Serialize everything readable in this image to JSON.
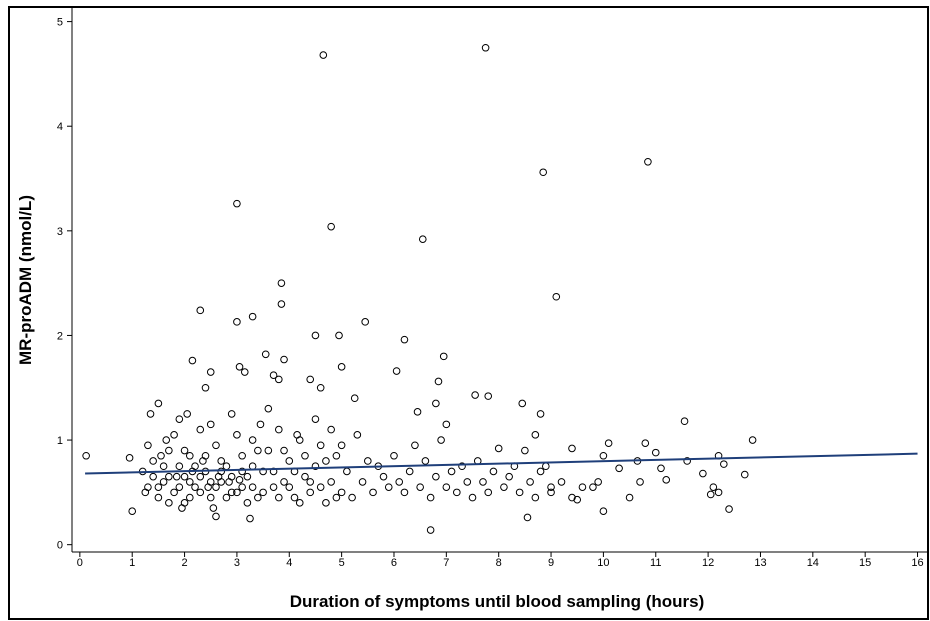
{
  "chart_data": {
    "type": "scatter",
    "x_label": "Duration of symptoms until blood sampling (hours)",
    "y_label": "MR-proADM (nmol/L)",
    "xlim": [
      -0.15,
      16.2
    ],
    "ylim": [
      -0.07,
      5.13
    ],
    "xticks": [
      0,
      1,
      2,
      3,
      4,
      5,
      6,
      7,
      8,
      9,
      10,
      11,
      12,
      13,
      14,
      15,
      16
    ],
    "yticks": [
      0,
      1,
      2,
      3,
      4,
      5
    ],
    "series": [
      {
        "type": "scatter",
        "color": "#000000",
        "x": [
          4.65,
          7.75,
          10.85,
          8.85,
          3.0,
          4.8,
          6.55,
          9.1,
          3.85,
          3.85,
          2.3,
          3.3,
          3.0,
          5.45,
          4.95,
          4.5,
          6.2,
          2.15,
          3.55,
          3.9,
          6.95,
          3.05,
          2.5,
          3.15,
          5.0,
          6.05,
          3.7,
          4.4,
          6.85,
          3.8,
          4.6,
          2.4,
          7.55,
          7.8,
          5.25,
          8.45,
          6.8,
          6.45,
          8.8,
          11.55,
          7.0,
          8.7,
          12.85,
          10.1,
          10.8,
          9.4,
          0.12,
          0.95,
          1.0,
          6.7,
          12.4,
          12.2,
          11.6,
          12.7,
          10.0,
          8.55,
          2.6,
          3.25,
          11.0,
          12.2,
          12.3,
          10.7,
          10.5,
          9.9,
          9.5,
          9.0,
          11.9,
          12.1,
          12.05,
          11.1,
          11.2,
          10.65,
          10.3,
          1.2,
          1.3,
          1.4,
          1.5,
          1.5,
          1.6,
          1.7,
          1.8,
          1.9,
          2.0,
          2.0,
          2.1,
          2.2,
          2.3,
          2.4,
          2.5,
          2.6,
          2.7,
          2.8,
          2.9,
          3.0,
          3.1,
          3.2,
          3.3,
          3.4,
          3.5,
          3.6,
          3.7,
          3.8,
          3.9,
          4.0,
          4.1,
          4.2,
          4.3,
          4.4,
          4.5,
          4.6,
          4.7,
          4.8,
          4.9,
          5.0,
          5.1,
          5.2,
          5.3,
          5.4,
          5.5,
          5.6,
          5.7,
          5.8,
          5.9,
          6.0,
          6.1,
          6.2,
          6.3,
          6.4,
          6.5,
          6.6,
          6.7,
          6.8,
          6.9,
          7.0,
          7.1,
          7.2,
          7.3,
          7.4,
          7.5,
          7.6,
          7.7,
          7.8,
          7.9,
          8.0,
          8.1,
          8.2,
          8.3,
          8.4,
          8.5,
          8.6,
          8.7,
          8.8,
          8.9,
          9.0,
          9.2,
          9.4,
          9.6,
          9.8,
          10.0,
          1.3,
          1.4,
          1.6,
          1.7,
          1.8,
          1.9,
          2.0,
          2.1,
          2.2,
          2.3,
          2.4,
          2.5,
          2.6,
          2.7,
          2.8,
          2.9,
          3.0,
          3.1,
          3.2,
          3.3,
          3.4,
          3.5,
          3.6,
          3.7,
          3.8,
          3.9,
          4.0,
          4.1,
          4.2,
          4.3,
          4.4,
          4.5,
          4.6,
          4.7,
          4.8,
          4.9,
          5.0,
          1.5,
          1.7,
          1.9,
          2.1,
          2.3,
          2.5,
          2.7,
          2.9,
          3.1,
          3.3,
          1.25,
          1.55,
          1.65,
          1.85,
          2.15,
          2.35,
          2.45,
          2.65,
          2.85,
          3.05,
          2.05,
          1.35,
          2.55,
          1.95,
          3.45,
          4.15
        ],
        "values": [
          4.68,
          4.75,
          3.66,
          3.56,
          3.26,
          3.04,
          2.92,
          2.37,
          2.5,
          2.3,
          2.24,
          2.18,
          2.13,
          2.13,
          2.0,
          2.0,
          1.96,
          1.76,
          1.82,
          1.77,
          1.8,
          1.7,
          1.65,
          1.65,
          1.7,
          1.66,
          1.62,
          1.58,
          1.56,
          1.58,
          1.5,
          1.5,
          1.43,
          1.42,
          1.4,
          1.35,
          1.35,
          1.27,
          1.25,
          1.18,
          1.15,
          1.05,
          1.0,
          0.97,
          0.97,
          0.92,
          0.85,
          0.83,
          0.32,
          0.14,
          0.34,
          0.5,
          0.8,
          0.67,
          0.32,
          0.26,
          0.27,
          0.25,
          0.88,
          0.85,
          0.77,
          0.6,
          0.45,
          0.6,
          0.43,
          0.55,
          0.68,
          0.55,
          0.48,
          0.73,
          0.62,
          0.8,
          0.73,
          0.7,
          0.55,
          0.8,
          0.45,
          1.35,
          0.6,
          0.9,
          0.5,
          1.2,
          0.65,
          0.4,
          0.85,
          0.55,
          1.1,
          0.7,
          0.45,
          0.95,
          0.6,
          0.75,
          1.25,
          0.5,
          0.85,
          0.65,
          1.0,
          0.45,
          0.7,
          0.9,
          0.55,
          1.1,
          0.6,
          0.8,
          0.45,
          1.0,
          0.65,
          0.5,
          0.75,
          0.95,
          0.4,
          0.6,
          0.85,
          0.5,
          0.7,
          0.45,
          1.05,
          0.6,
          0.8,
          0.5,
          0.75,
          0.65,
          0.55,
          0.85,
          0.6,
          0.5,
          0.7,
          0.95,
          0.55,
          0.8,
          0.45,
          0.65,
          1.0,
          0.55,
          0.7,
          0.5,
          0.75,
          0.6,
          0.45,
          0.8,
          0.6,
          0.5,
          0.7,
          0.92,
          0.55,
          0.65,
          0.75,
          0.5,
          0.9,
          0.6,
          0.45,
          0.7,
          0.75,
          0.5,
          0.6,
          0.45,
          0.55,
          0.55,
          0.85,
          0.95,
          0.65,
          0.75,
          0.4,
          1.05,
          0.55,
          0.9,
          0.6,
          0.75,
          0.5,
          0.85,
          1.15,
          0.55,
          0.8,
          0.45,
          0.65,
          1.05,
          0.55,
          0.4,
          0.75,
          0.9,
          0.5,
          1.3,
          0.7,
          0.45,
          0.9,
          0.55,
          0.7,
          0.4,
          0.85,
          0.6,
          1.2,
          0.55,
          0.8,
          1.1,
          0.45,
          0.95,
          0.55,
          0.65,
          0.75,
          0.45,
          0.65,
          0.6,
          0.7,
          0.5,
          0.7,
          0.55,
          0.5,
          0.85,
          1.0,
          0.65,
          0.7,
          0.8,
          0.55,
          0.65,
          0.6,
          0.62,
          1.25,
          1.25,
          0.35,
          0.35,
          1.15,
          1.05
        ]
      },
      {
        "type": "line",
        "color": "#1f3f7a",
        "x": [
          0.1,
          16
        ],
        "values": [
          0.68,
          0.87
        ]
      }
    ]
  }
}
